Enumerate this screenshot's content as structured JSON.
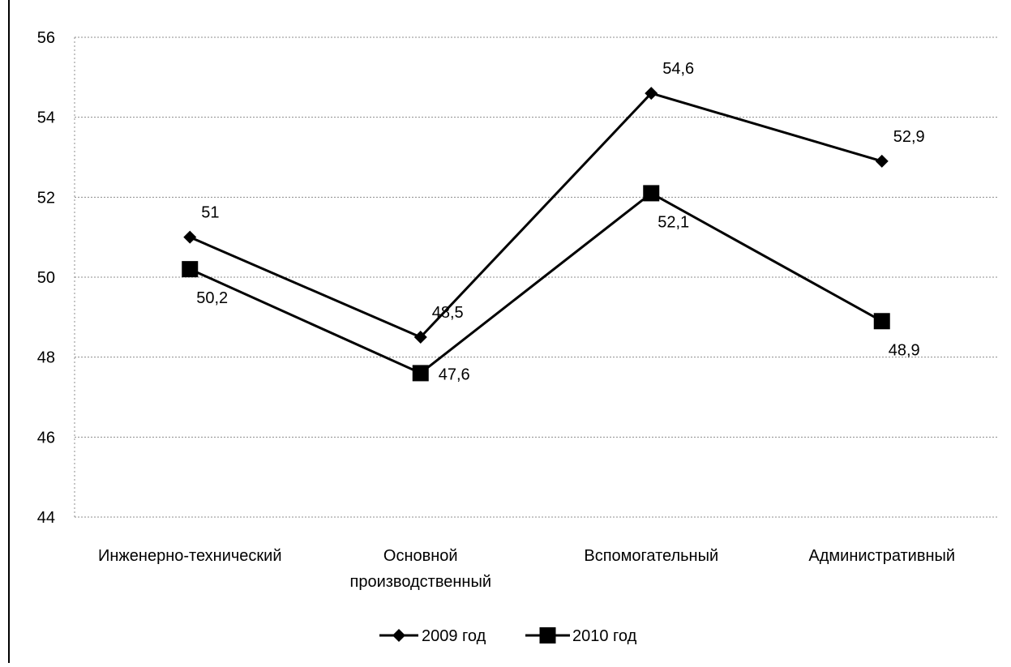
{
  "chart_data": {
    "type": "line",
    "title": "",
    "xlabel": "",
    "ylabel": "",
    "categories": [
      "Инженерно-технический",
      "Основной производственный",
      "Вспомогательный",
      "Административный"
    ],
    "category_lines": [
      [
        "Инженерно-технический"
      ],
      [
        "Основной",
        "производственный"
      ],
      [
        "Вспомогательный"
      ],
      [
        "Административный"
      ]
    ],
    "series": [
      {
        "name": "2009 год",
        "marker": "diamond",
        "values": [
          51,
          48.5,
          54.6,
          52.9
        ],
        "labels": [
          "51",
          "48,5",
          "54,6",
          "52,9"
        ],
        "label_position": [
          "above",
          "above",
          "above",
          "above"
        ]
      },
      {
        "name": "2010 год",
        "marker": "square",
        "values": [
          50.2,
          47.6,
          52.1,
          48.9
        ],
        "labels": [
          "50,2",
          "47,6",
          "52,1",
          "48,9"
        ],
        "label_position": [
          "below",
          "right",
          "below",
          "below"
        ]
      }
    ],
    "ylim": [
      44,
      56
    ],
    "yticks": [
      44,
      46,
      48,
      50,
      52,
      54,
      56
    ],
    "grid": true,
    "legend_position": "bottom",
    "colors": {
      "line": "#000000",
      "grid": "#8c8c8c"
    }
  }
}
